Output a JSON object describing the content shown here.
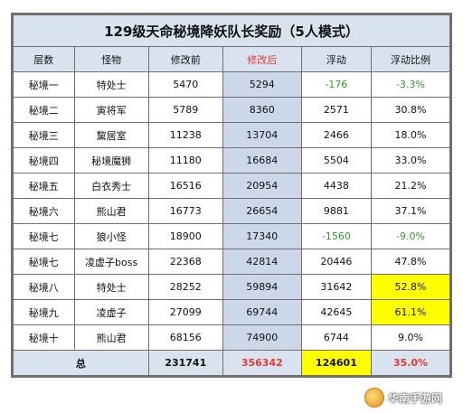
{
  "title": "129级天命秘境降妖队长奖励（5人模式）",
  "columns": [
    "层数",
    "怪物",
    "修改前",
    "修改后",
    "浮动",
    "浮动比例"
  ],
  "rows": [
    {
      "level": "秘境一",
      "monster": "特处士",
      "before": "5470",
      "after": "5294",
      "float": "-176",
      "ratio": "-3.3%"
    },
    {
      "level": "秘境二",
      "monster": "寅将军",
      "before": "5789",
      "after": "8360",
      "float": "2571",
      "ratio": "30.8%"
    },
    {
      "level": "秘境三",
      "monster": "黧居室",
      "before": "11238",
      "after": "13704",
      "float": "2466",
      "ratio": "18.0%"
    },
    {
      "level": "秘境四",
      "monster": "秘境魔狮",
      "before": "11180",
      "after": "16684",
      "float": "5504",
      "ratio": "33.0%"
    },
    {
      "level": "秘境五",
      "monster": "白衣秀士",
      "before": "16516",
      "after": "20954",
      "float": "4438",
      "ratio": "21.2%"
    },
    {
      "level": "秘境六",
      "monster": "熊山君",
      "before": "16773",
      "after": "26654",
      "float": "9881",
      "ratio": "37.1%"
    },
    {
      "level": "秘境七",
      "monster": "狼小怪",
      "before": "18900",
      "after": "17340",
      "float": "-1560",
      "ratio": "-9.0%"
    },
    {
      "level": "秘境七",
      "monster": "凌虚子boss",
      "before": "22368",
      "after": "42814",
      "float": "20446",
      "ratio": "47.8%"
    },
    {
      "level": "秘境八",
      "monster": "特处士",
      "before": "28252",
      "after": "59894",
      "float": "31642",
      "ratio": "52.8%"
    },
    {
      "level": "秘境九",
      "monster": "凌虚子",
      "before": "27099",
      "after": "69744",
      "float": "42645",
      "ratio": "61.1%"
    },
    {
      "level": "秘境十",
      "monster": "熊山君",
      "before": "68156",
      "after": "74900",
      "float": "6744",
      "ratio": "9.0%"
    }
  ],
  "total": {
    "label": "总",
    "before": "231741",
    "after": "356342",
    "float": "124601",
    "ratio": "35.0%"
  },
  "watermark": {
    "text": "华南手游网",
    "icon": "site-logo-icon"
  },
  "colors": {
    "header_bg": "#d9e3ef",
    "modified_col_bg": "#ccd8ea",
    "highlight_yellow": "#ffff00",
    "accent_red": "#e53935",
    "negative_green": "#2e9a2e"
  }
}
